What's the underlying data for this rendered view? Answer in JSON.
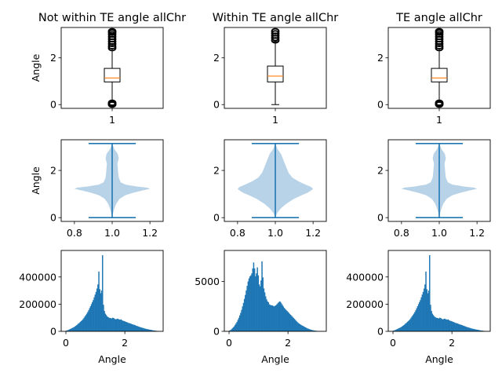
{
  "colors": {
    "primary": "#1f77b4",
    "violin_fill": "#b8d3e8",
    "median": "#ff7f0e",
    "axes": "#000000",
    "background": "#ffffff"
  },
  "columns": [
    {
      "title": "Not within TE angle allChr"
    },
    {
      "title": "Within TE angle allChr"
    },
    {
      "title": "TE angle allChr"
    }
  ],
  "chart_data": [
    {
      "type": "boxplot",
      "title": "Not within TE angle allChr",
      "ylabel": "Angle",
      "xlim": [
        0.5,
        1.5
      ],
      "ylim": [
        -0.16,
        3.3
      ],
      "xticks": [
        1
      ],
      "xtick_labels": [
        "1"
      ],
      "yticks": [
        0,
        2
      ],
      "ytick_labels": [
        "0",
        "2"
      ],
      "box": {
        "position": 1,
        "q1": 0.97,
        "median": 1.14,
        "q3": 1.55,
        "whisker_low": 0.1,
        "whisker_high": 2.4,
        "fliers_low": [
          0.0,
          0.02,
          0.05,
          0.08
        ],
        "fliers_high": [
          2.42,
          2.5,
          2.6,
          2.7,
          2.8,
          2.9,
          3.0,
          3.08,
          3.14
        ]
      }
    },
    {
      "type": "boxplot",
      "title": "Within TE angle allChr",
      "ylabel": "",
      "xlim": [
        0.5,
        1.5
      ],
      "ylim": [
        -0.16,
        3.3
      ],
      "xticks": [
        1
      ],
      "xtick_labels": [
        "1"
      ],
      "yticks": [
        0,
        2
      ],
      "ytick_labels": [
        "0",
        "2"
      ],
      "box": {
        "position": 1,
        "q1": 0.97,
        "median": 1.22,
        "q3": 1.65,
        "whisker_low": 0.0,
        "whisker_high": 2.7,
        "fliers_low": [],
        "fliers_high": [
          2.75,
          2.85,
          2.95,
          3.05,
          3.14
        ]
      }
    },
    {
      "type": "boxplot",
      "title": "TE angle allChr",
      "ylabel": "",
      "xlim": [
        0.5,
        1.5
      ],
      "ylim": [
        -0.16,
        3.3
      ],
      "xticks": [
        1
      ],
      "xtick_labels": [
        "1"
      ],
      "yticks": [
        0,
        2
      ],
      "ytick_labels": [
        "0",
        "2"
      ],
      "box": {
        "position": 1,
        "q1": 0.97,
        "median": 1.14,
        "q3": 1.55,
        "whisker_low": 0.1,
        "whisker_high": 2.4,
        "fliers_low": [
          0.0,
          0.02,
          0.05,
          0.08
        ],
        "fliers_high": [
          2.42,
          2.5,
          2.6,
          2.7,
          2.8,
          2.9,
          3.0,
          3.08,
          3.14
        ]
      }
    },
    {
      "type": "violin",
      "title": "",
      "ylabel": "Angle",
      "xlim": [
        0.73,
        1.27
      ],
      "ylim": [
        -0.16,
        3.3
      ],
      "xticks": [
        0.8,
        1.0,
        1.2
      ],
      "xtick_labels": [
        "0.8",
        "1.0",
        "1.2"
      ],
      "yticks": [
        0,
        2
      ],
      "ytick_labels": [
        "0",
        "2"
      ],
      "violin": {
        "position": 1,
        "min": 0.0,
        "max": 3.14,
        "cap_halfwidth": 0.125,
        "profile_y": [
          0.0,
          0.2,
          0.4,
          0.6,
          0.8,
          0.95,
          1.05,
          1.15,
          1.22,
          1.27,
          1.32,
          1.4,
          1.5,
          1.7,
          1.9,
          2.1,
          2.3,
          2.5,
          2.7,
          2.9,
          3.14
        ],
        "profile_halfwidth": [
          0.0,
          0.005,
          0.012,
          0.022,
          0.04,
          0.07,
          0.11,
          0.16,
          0.2,
          0.185,
          0.13,
          0.07,
          0.045,
          0.035,
          0.032,
          0.03,
          0.028,
          0.035,
          0.03,
          0.012,
          0.0
        ]
      }
    },
    {
      "type": "violin",
      "title": "",
      "ylabel": "",
      "xlim": [
        0.73,
        1.27
      ],
      "ylim": [
        -0.16,
        3.3
      ],
      "xticks": [
        0.8,
        1.0,
        1.2
      ],
      "xtick_labels": [
        "0.8",
        "1.0",
        "1.2"
      ],
      "yticks": [
        0,
        2
      ],
      "ytick_labels": [
        "0",
        "2"
      ],
      "violin": {
        "position": 1,
        "min": 0.0,
        "max": 3.14,
        "cap_halfwidth": 0.125,
        "profile_y": [
          0.0,
          0.2,
          0.4,
          0.6,
          0.8,
          0.95,
          1.05,
          1.15,
          1.22,
          1.3,
          1.4,
          1.55,
          1.7,
          1.9,
          2.1,
          2.3,
          2.5,
          2.7,
          2.9,
          3.14
        ],
        "profile_halfwidth": [
          0.0,
          0.01,
          0.03,
          0.06,
          0.1,
          0.14,
          0.17,
          0.19,
          0.2,
          0.19,
          0.16,
          0.12,
          0.09,
          0.07,
          0.06,
          0.05,
          0.04,
          0.03,
          0.012,
          0.0
        ]
      }
    },
    {
      "type": "violin",
      "title": "",
      "ylabel": "",
      "xlim": [
        0.73,
        1.27
      ],
      "ylim": [
        -0.16,
        3.3
      ],
      "xticks": [
        0.8,
        1.0,
        1.2
      ],
      "xtick_labels": [
        "0.8",
        "1.0",
        "1.2"
      ],
      "yticks": [
        0,
        2
      ],
      "ytick_labels": [
        "0",
        "2"
      ],
      "violin": {
        "position": 1,
        "min": 0.0,
        "max": 3.14,
        "cap_halfwidth": 0.125,
        "profile_y": [
          0.0,
          0.2,
          0.4,
          0.6,
          0.8,
          0.95,
          1.05,
          1.15,
          1.22,
          1.27,
          1.32,
          1.4,
          1.5,
          1.7,
          1.9,
          2.1,
          2.3,
          2.5,
          2.7,
          2.9,
          3.14
        ],
        "profile_halfwidth": [
          0.0,
          0.005,
          0.012,
          0.022,
          0.04,
          0.07,
          0.11,
          0.16,
          0.2,
          0.185,
          0.13,
          0.07,
          0.045,
          0.035,
          0.032,
          0.03,
          0.028,
          0.035,
          0.03,
          0.012,
          0.0
        ]
      }
    },
    {
      "type": "histogram",
      "title": "",
      "xlabel": "Angle",
      "ylabel": "",
      "xlim": [
        -0.16,
        3.3
      ],
      "ylim": [
        0,
        595000
      ],
      "xticks": [
        0,
        2
      ],
      "xtick_labels": [
        "0",
        "2"
      ],
      "yticks": [
        0,
        200000,
        400000
      ],
      "ytick_labels": [
        "0",
        "200000",
        "400000"
      ],
      "bins": {
        "start": 0,
        "end": 3.14,
        "count": 100,
        "counts": [
          5000,
          7000,
          10000,
          13000,
          17000,
          20000,
          23000,
          27000,
          30000,
          35000,
          40000,
          45000,
          50000,
          58000,
          62000,
          70000,
          76000,
          82000,
          90000,
          100000,
          110000,
          120000,
          130000,
          142000,
          155000,
          170000,
          185000,
          200000,
          215000,
          230000,
          250000,
          270000,
          290000,
          315000,
          345000,
          440000,
          310000,
          280000,
          300000,
          560000,
          195000,
          150000,
          130000,
          120000,
          110000,
          105000,
          100000,
          98000,
          97000,
          95000,
          100000,
          98000,
          92000,
          88000,
          90000,
          93000,
          91000,
          87000,
          85000,
          88000,
          82000,
          78000,
          76000,
          74000,
          70000,
          68000,
          65000,
          62000,
          60000,
          58000,
          55000,
          52000,
          50000,
          48000,
          46000,
          42000,
          40000,
          38000,
          35000,
          32000,
          30000,
          28000,
          26000,
          24000,
          22000,
          20000,
          18000,
          17000,
          15000,
          14000,
          12000,
          11000,
          10000,
          8000,
          7000,
          6000,
          5000,
          4000,
          3000,
          2000
        ]
      }
    },
    {
      "type": "histogram",
      "title": "",
      "xlabel": "Angle",
      "ylabel": "",
      "xlim": [
        -0.16,
        3.3
      ],
      "ylim": [
        0,
        8100
      ],
      "xticks": [
        0,
        2
      ],
      "xtick_labels": [
        "0",
        "2"
      ],
      "yticks": [
        0,
        5000
      ],
      "ytick_labels": [
        "0",
        "5000"
      ],
      "bins": {
        "start": 0,
        "end": 3.14,
        "count": 100,
        "counts": [
          80,
          120,
          200,
          300,
          400,
          500,
          650,
          800,
          950,
          1150,
          1350,
          1600,
          1850,
          2150,
          2500,
          2850,
          3250,
          3650,
          4100,
          4550,
          5000,
          5300,
          5500,
          5600,
          5800,
          6300,
          6900,
          6300,
          5500,
          5800,
          6400,
          5600,
          4700,
          4500,
          5100,
          7000,
          5400,
          4300,
          3900,
          3500,
          3200,
          3000,
          2900,
          2700,
          2650,
          2600,
          2600,
          2550,
          2500,
          2550,
          2600,
          2700,
          2800,
          2900,
          3000,
          2950,
          2800,
          2650,
          2500,
          2350,
          2250,
          2150,
          2050,
          1950,
          1850,
          1750,
          1650,
          1550,
          1450,
          1350,
          1250,
          1150,
          1050,
          950,
          850,
          780,
          720,
          660,
          600,
          550,
          500,
          450,
          400,
          350,
          300,
          260,
          220,
          190,
          160,
          130,
          110,
          90,
          75,
          60,
          45,
          35,
          25,
          15,
          10,
          5
        ]
      }
    },
    {
      "type": "histogram",
      "title": "",
      "xlabel": "Angle",
      "ylabel": "",
      "xlim": [
        -0.16,
        3.3
      ],
      "ylim": [
        0,
        595000
      ],
      "xticks": [
        0,
        2
      ],
      "xtick_labels": [
        "0",
        "2"
      ],
      "yticks": [
        0,
        200000,
        400000
      ],
      "ytick_labels": [
        "0",
        "200000",
        "400000"
      ],
      "bins": {
        "start": 0,
        "end": 3.14,
        "count": 100,
        "counts": [
          5000,
          7000,
          10000,
          13000,
          17000,
          20000,
          23000,
          27000,
          30000,
          35000,
          40000,
          45000,
          50000,
          58000,
          62000,
          70000,
          76000,
          82000,
          90000,
          100000,
          110000,
          120000,
          130000,
          142000,
          155000,
          170000,
          185000,
          200000,
          215000,
          230000,
          250000,
          270000,
          290000,
          315000,
          345000,
          440000,
          310000,
          280000,
          300000,
          560000,
          195000,
          150000,
          130000,
          120000,
          110000,
          105000,
          100000,
          98000,
          97000,
          95000,
          100000,
          98000,
          92000,
          88000,
          90000,
          93000,
          91000,
          87000,
          85000,
          88000,
          82000,
          78000,
          76000,
          74000,
          70000,
          68000,
          65000,
          62000,
          60000,
          58000,
          55000,
          52000,
          50000,
          48000,
          46000,
          42000,
          40000,
          38000,
          35000,
          32000,
          30000,
          28000,
          26000,
          24000,
          22000,
          20000,
          18000,
          17000,
          15000,
          14000,
          12000,
          11000,
          10000,
          8000,
          7000,
          6000,
          5000,
          4000,
          3000,
          2000
        ]
      }
    }
  ]
}
